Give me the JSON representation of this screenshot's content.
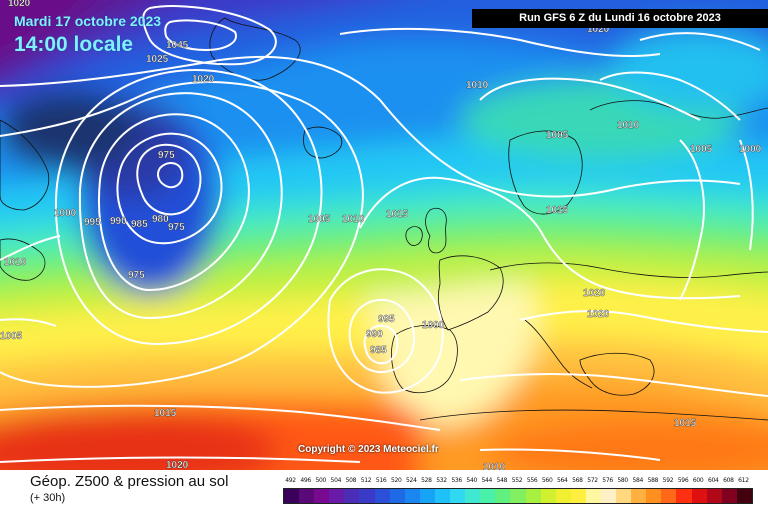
{
  "header": {
    "date_title": "Mardi 17 octobre 2023",
    "time_title": "14:00 locale",
    "run_info": "Run GFS 6 Z du Lundi 16 octobre 2023"
  },
  "copyright": "Copyright © 2023 Meteociel.fr",
  "footer": {
    "title": "Géop. Z500 & pression au sol",
    "subtitle": "(+ 30h)"
  },
  "scale": {
    "labels": [
      "492",
      "496",
      "500",
      "504",
      "508",
      "512",
      "516",
      "520",
      "524",
      "528",
      "532",
      "536",
      "540",
      "544",
      "548",
      "552",
      "556",
      "560",
      "564",
      "568",
      "572",
      "576",
      "580",
      "584",
      "588",
      "592",
      "596",
      "600",
      "604",
      "608",
      "612"
    ],
    "colors": [
      "#3a005a",
      "#5a0a78",
      "#780a90",
      "#6a1aa8",
      "#4b2db8",
      "#3a3ac8",
      "#2a50d8",
      "#1e6ae6",
      "#1a86f0",
      "#18a4f6",
      "#20c0f8",
      "#30d8f0",
      "#40e8d0",
      "#48f0a8",
      "#60f080",
      "#80f060",
      "#a8f040",
      "#d0f030",
      "#f0f030",
      "#fff040",
      "#fff8a0",
      "#fff0c8",
      "#ffd880",
      "#ffb040",
      "#ff9020",
      "#ff6818",
      "#ff3010",
      "#e01010",
      "#b00818",
      "#800020",
      "#400010"
    ]
  },
  "isobars": [
    {
      "label": "1020",
      "pos": "upper-left-corner"
    },
    {
      "label": "1045",
      "pos": "greenland-high"
    },
    {
      "label": "1025",
      "pos": "greenland-high"
    },
    {
      "label": "1020",
      "pos": "greenland-high"
    },
    {
      "label": "975",
      "pos": "labrador-low"
    },
    {
      "label": "1000",
      "pos": "west-atlantic"
    },
    {
      "label": "995",
      "pos": "west-atlantic"
    },
    {
      "label": "990",
      "pos": "west-atlantic"
    },
    {
      "label": "985",
      "pos": "west-atlantic"
    },
    {
      "label": "980",
      "pos": "west-atlantic"
    },
    {
      "label": "975",
      "pos": "west-atlantic"
    },
    {
      "label": "975",
      "pos": "west-atlantic-south"
    },
    {
      "label": "1010",
      "pos": "far-west"
    },
    {
      "label": "1005",
      "pos": "far-west-south"
    },
    {
      "label": "1010",
      "pos": "north-atlantic"
    },
    {
      "label": "1005",
      "pos": "mid-atlantic"
    },
    {
      "label": "1010",
      "pos": "mid-atlantic"
    },
    {
      "label": "1015",
      "pos": "uk-area"
    },
    {
      "label": "995",
      "pos": "iberian-low"
    },
    {
      "label": "990",
      "pos": "iberian-low"
    },
    {
      "label": "985",
      "pos": "iberian-low"
    },
    {
      "label": "1000",
      "pos": "iberian-low"
    },
    {
      "label": "1010",
      "pos": "scandinavia"
    },
    {
      "label": "1005",
      "pos": "scandinavia-south"
    },
    {
      "label": "1005",
      "pos": "russia"
    },
    {
      "label": "1000",
      "pos": "russia-east"
    },
    {
      "label": "1015",
      "pos": "central-europe"
    },
    {
      "label": "1020",
      "pos": "balkans"
    },
    {
      "label": "1020",
      "pos": "italy"
    },
    {
      "label": "1015",
      "pos": "atlantic-south"
    },
    {
      "label": "1020",
      "pos": "atlantic-far-south"
    },
    {
      "label": "1010",
      "pos": "north-africa"
    },
    {
      "label": "1015",
      "pos": "east-med"
    },
    {
      "label": "1020",
      "pos": "russia-north"
    }
  ]
}
